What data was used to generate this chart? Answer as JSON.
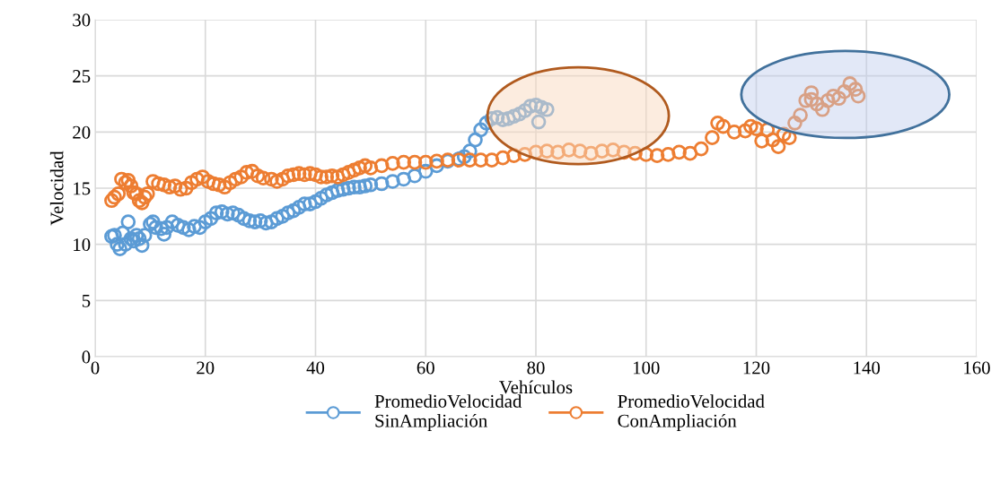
{
  "chart_data": {
    "type": "scatter",
    "xlabel": "Vehículos",
    "ylabel": "Velocidad",
    "xlim": [
      0,
      160
    ],
    "ylim": [
      0,
      30
    ],
    "xticks": [
      0,
      20,
      40,
      60,
      80,
      100,
      120,
      140,
      160
    ],
    "yticks": [
      0,
      5,
      10,
      15,
      20,
      25,
      30
    ],
    "grid": true,
    "legend": "bottom",
    "marker": "circle",
    "series": [
      {
        "name": "PromedioVelocidad\nSinAmpliación",
        "color": "#5b9bd5",
        "x": [
          3,
          3.5,
          4,
          4.5,
          5,
          5.5,
          6,
          6.5,
          7,
          7.5,
          8,
          8.5,
          9,
          10,
          10.5,
          11,
          12,
          12.5,
          13,
          14,
          15,
          16,
          17,
          18,
          19,
          20,
          21,
          22,
          23,
          24,
          25,
          26,
          27,
          28,
          29,
          30,
          31,
          32,
          33,
          34,
          35,
          36,
          37,
          38,
          39,
          40,
          41,
          42,
          43,
          44,
          45,
          46,
          47,
          48,
          49,
          50,
          52,
          54,
          56,
          58,
          60,
          62,
          64,
          66,
          67,
          68,
          69,
          70,
          71,
          72,
          73,
          74,
          75,
          76,
          77,
          78,
          79,
          80,
          81,
          82,
          80.5
        ],
        "values": [
          10.7,
          10.8,
          10,
          9.6,
          11,
          10,
          12,
          10.5,
          10.3,
          10.8,
          10.5,
          9.9,
          10.8,
          11.8,
          12,
          11.5,
          11.4,
          10.9,
          11.5,
          12,
          11.7,
          11.5,
          11.3,
          11.6,
          11.5,
          12,
          12.3,
          12.8,
          12.9,
          12.7,
          12.8,
          12.6,
          12.3,
          12.1,
          12,
          12.1,
          11.9,
          12,
          12.3,
          12.5,
          12.8,
          13,
          13.3,
          13.6,
          13.6,
          13.8,
          14.1,
          14.4,
          14.6,
          14.8,
          14.9,
          15,
          15.1,
          15.1,
          15.2,
          15.3,
          15.4,
          15.6,
          15.8,
          16.1,
          16.5,
          17,
          17.4,
          17.6,
          17.8,
          18.3,
          19.3,
          20.2,
          20.8,
          21.2,
          21.3,
          21.1,
          21.2,
          21.4,
          21.6,
          21.9,
          22.3,
          22.4,
          22.2,
          22,
          20.9
        ]
      },
      {
        "name": "PromedioVelocidad\nConAmpliación",
        "color": "#ed7d31",
        "x": [
          3,
          3.5,
          4.2,
          4.8,
          5.5,
          6,
          6.5,
          7,
          7.5,
          8,
          8.5,
          9,
          9.5,
          10.5,
          11.5,
          12.5,
          13.5,
          14.5,
          15.5,
          16.5,
          17.5,
          18.5,
          19.5,
          20.5,
          21.5,
          22.5,
          23.5,
          24.5,
          25.5,
          26.5,
          27.5,
          28.5,
          29.5,
          30.5,
          32,
          33,
          34,
          35,
          36,
          37,
          38,
          39,
          40,
          41,
          42,
          43,
          44,
          45,
          46,
          47,
          48,
          49,
          50,
          52,
          54,
          56,
          58,
          60,
          62,
          64,
          66,
          68,
          70,
          72,
          74,
          76,
          78,
          80,
          82,
          84,
          86,
          88,
          90,
          92,
          94,
          96,
          98,
          100,
          102,
          104,
          106,
          108,
          110,
          112,
          113,
          114,
          116,
          118,
          119,
          120,
          121,
          122,
          123,
          124,
          125,
          126,
          127,
          128,
          129,
          130,
          131,
          132,
          133,
          134,
          135,
          136,
          137,
          138,
          138.5,
          130
        ],
        "values": [
          13.9,
          14.2,
          14.5,
          15.8,
          15.5,
          15.7,
          15.2,
          14.6,
          14.5,
          13.9,
          13.7,
          14.2,
          14.5,
          15.6,
          15.4,
          15.3,
          15.1,
          15.2,
          14.9,
          15,
          15.5,
          15.8,
          16,
          15.6,
          15.4,
          15.3,
          15.1,
          15.5,
          15.8,
          16,
          16.4,
          16.5,
          16.1,
          15.9,
          15.8,
          15.6,
          15.8,
          16.1,
          16.2,
          16.3,
          16.2,
          16.3,
          16.2,
          16,
          16,
          16.1,
          16,
          16.2,
          16.4,
          16.6,
          16.8,
          17,
          16.8,
          17,
          17.2,
          17.3,
          17.3,
          17.3,
          17.4,
          17.5,
          17.5,
          17.5,
          17.5,
          17.5,
          17.7,
          17.9,
          18,
          18.2,
          18.3,
          18.2,
          18.4,
          18.3,
          18.1,
          18.3,
          18.4,
          18.2,
          18.1,
          18,
          17.9,
          18,
          18.2,
          18.1,
          18.5,
          19.5,
          20.8,
          20.5,
          20,
          20.1,
          20.5,
          20.3,
          19.2,
          20.2,
          19.3,
          18.7,
          19.8,
          19.5,
          20.8,
          21.5,
          22.8,
          23.5,
          22.5,
          22,
          22.8,
          23.2,
          23,
          23.6,
          24.3,
          23.8,
          23.2,
          22.9
        ]
      }
    ]
  }
}
